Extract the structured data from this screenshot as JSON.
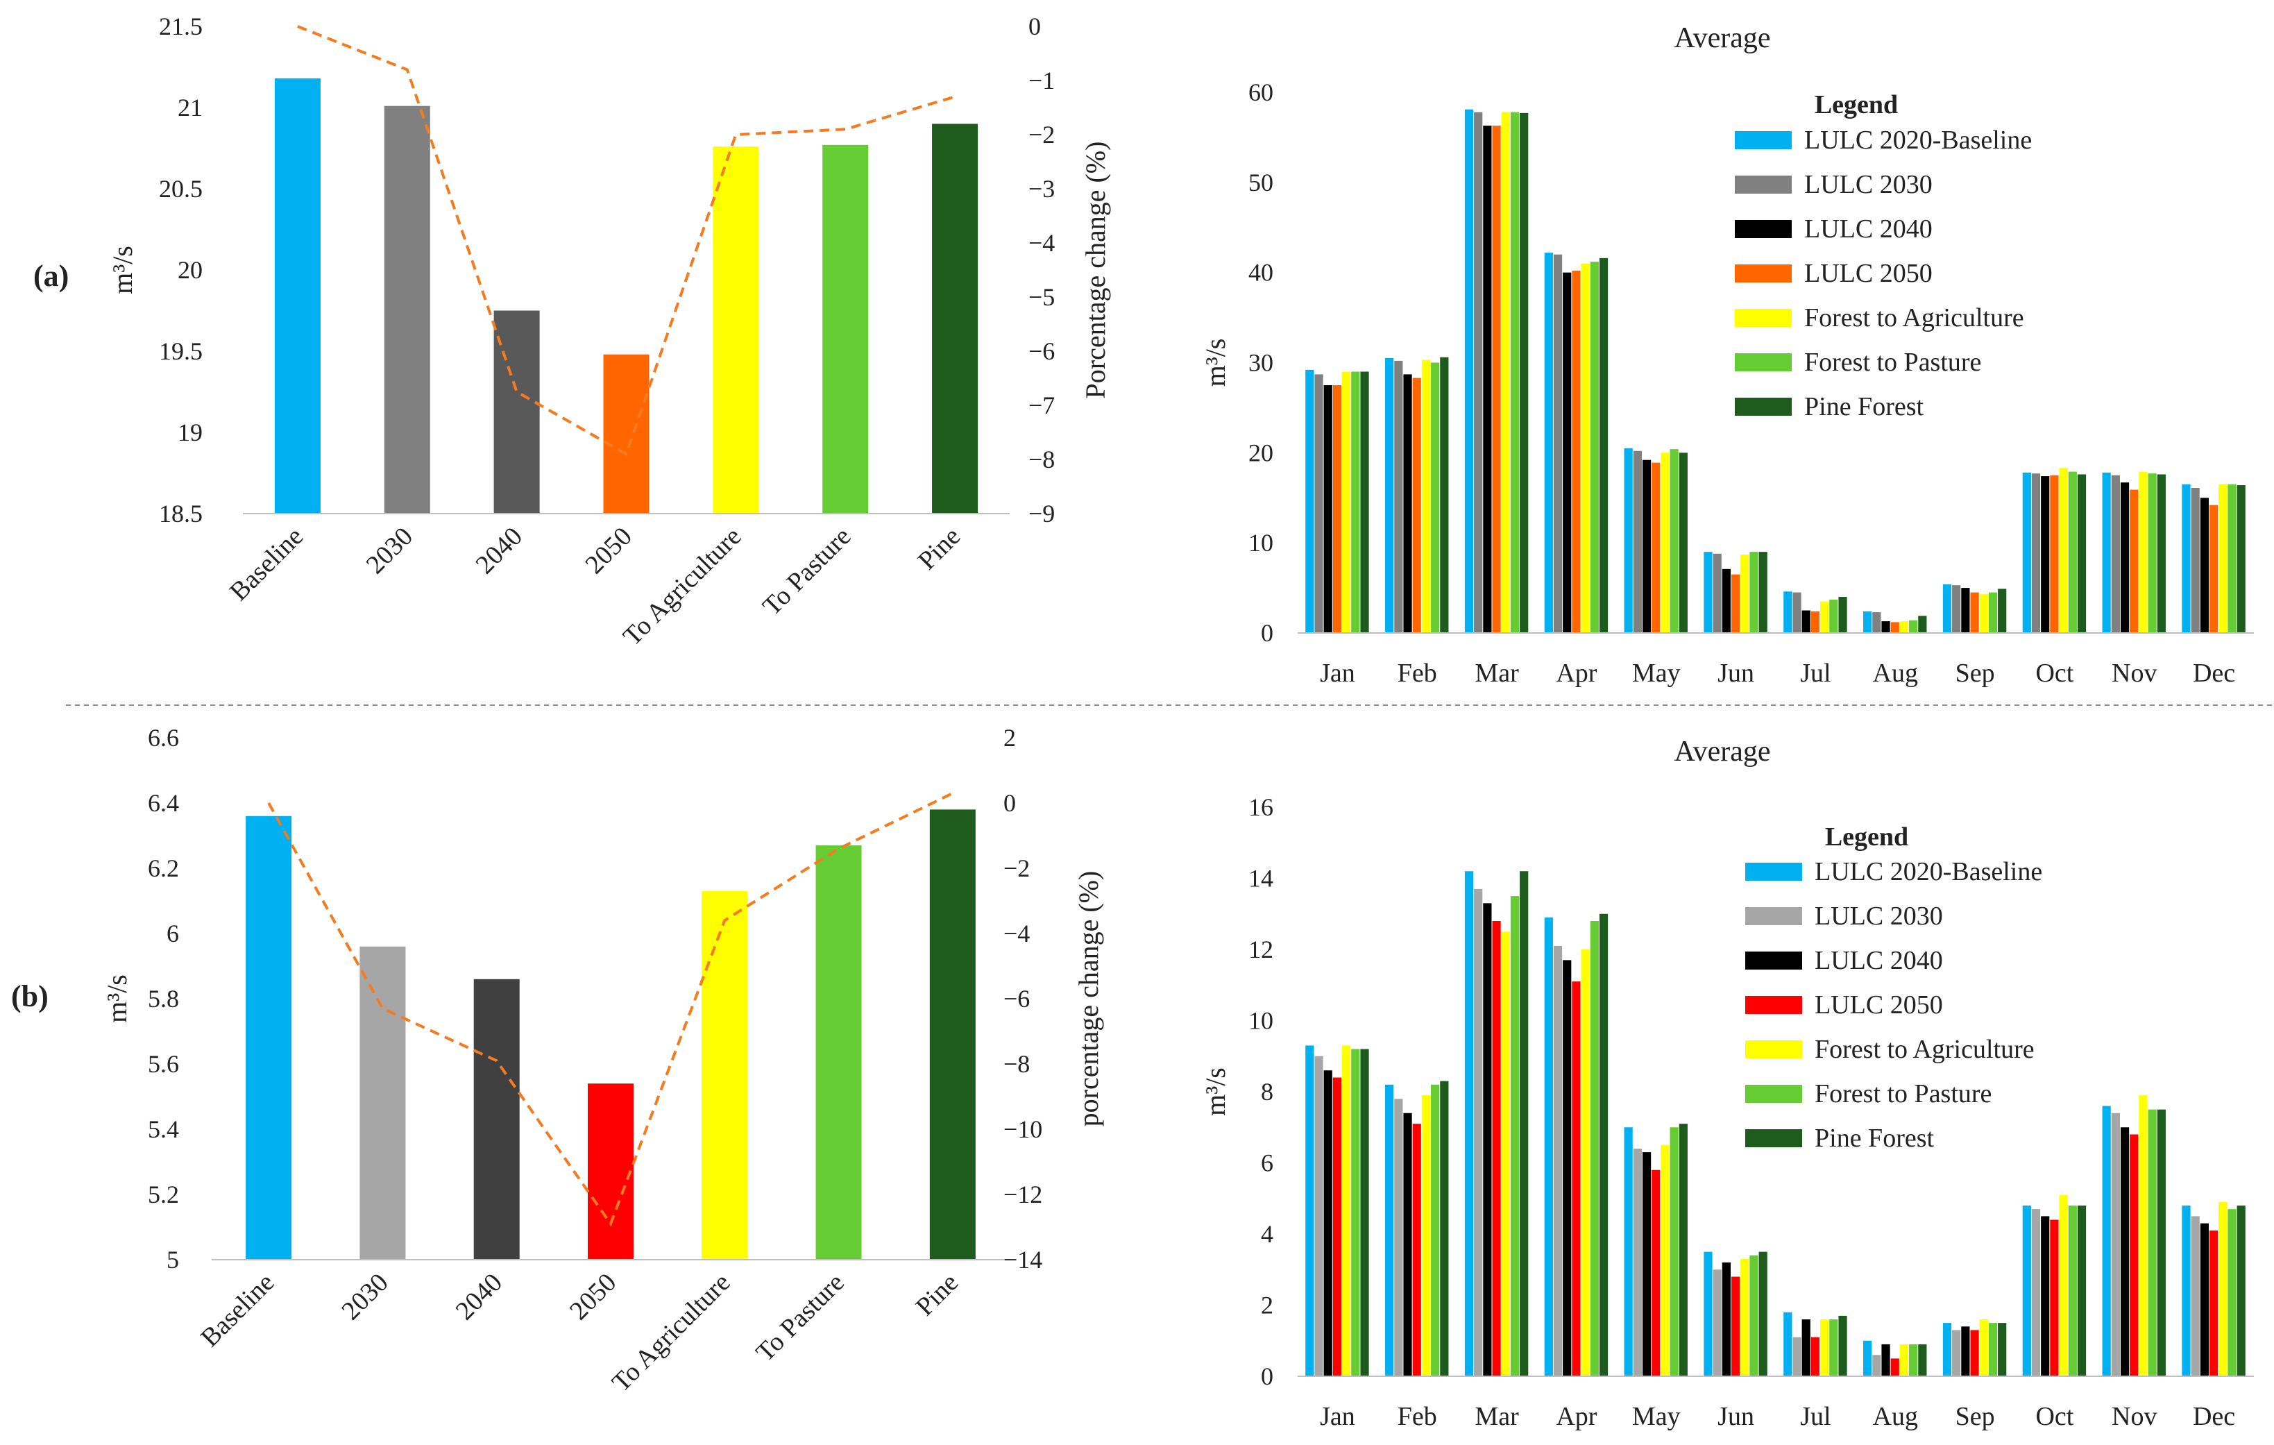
{
  "panels": [
    {
      "label": "(a)"
    },
    {
      "label": "(b)"
    }
  ],
  "chart_data": [
    {
      "id": "a-left",
      "type": "bar",
      "panel": "(a)",
      "categories": [
        "Baseline",
        "2030",
        "2040",
        "2050",
        "To Agriculture",
        "To Pasture",
        "Pine"
      ],
      "values": [
        21.18,
        21.01,
        19.75,
        19.48,
        20.76,
        20.77,
        20.9
      ],
      "colors": [
        "#00B0F0",
        "#808080",
        "#595959",
        "#FF6600",
        "#FFFF00",
        "#66CC33",
        "#1E5C1E"
      ],
      "ylabel": "m³/s",
      "ylim": [
        18.5,
        21.5
      ],
      "yticks": [
        18.5,
        19,
        19.5,
        20,
        20.5,
        21,
        21.5
      ],
      "ytick_labels": [
        "18.5",
        "19",
        "19.5",
        "20",
        "20.5",
        "21",
        "21.5"
      ],
      "line": {
        "name": "Porcentage change (%)",
        "values": [
          0,
          -0.8,
          -6.75,
          -7.9,
          -2,
          -1.9,
          -1.3
        ],
        "color": "#F47B20"
      },
      "y2label": "Porcentage change (%)",
      "y2lim": [
        -9,
        0
      ],
      "y2ticks": [
        0,
        -1,
        -2,
        -3,
        -4,
        -5,
        -6,
        -7,
        -8,
        -9
      ],
      "y2tick_labels": [
        "0",
        "−1",
        "−2",
        "−3",
        "−4",
        "−5",
        "−6",
        "−7",
        "−8",
        "−9"
      ],
      "grid": false
    },
    {
      "id": "a-right",
      "type": "bar",
      "panel": "(a)",
      "title": "Average",
      "categories": [
        "Jan",
        "Feb",
        "Mar",
        "Apr",
        "May",
        "Jun",
        "Jul",
        "Aug",
        "Sep",
        "Oct",
        "Nov",
        "Dec"
      ],
      "ylabel": "m³/s",
      "ylim": [
        0,
        60
      ],
      "yticks": [
        0,
        10,
        20,
        30,
        40,
        50,
        60
      ],
      "ytick_labels": [
        "0",
        "10",
        "20",
        "30",
        "40",
        "50",
        "60"
      ],
      "legend_title": "Legend",
      "legend_position": "top-right",
      "series": [
        {
          "name": "LULC 2020-Baseline",
          "color": "#00B0F0",
          "values": [
            29.2,
            30.5,
            58.1,
            42.2,
            20.5,
            9.0,
            4.6,
            2.4,
            5.4,
            17.8,
            17.8,
            16.5
          ]
        },
        {
          "name": "LULC 2030",
          "color": "#808080",
          "values": [
            28.7,
            30.2,
            57.8,
            42.0,
            20.2,
            8.8,
            4.5,
            2.3,
            5.3,
            17.7,
            17.5,
            16.1
          ]
        },
        {
          "name": "LULC 2040",
          "color": "#000000",
          "values": [
            27.5,
            28.7,
            56.3,
            40.0,
            19.2,
            7.1,
            2.5,
            1.3,
            5.0,
            17.4,
            16.7,
            15.0
          ]
        },
        {
          "name": "LULC 2050",
          "color": "#FF6600",
          "values": [
            27.5,
            28.3,
            56.3,
            40.2,
            18.9,
            6.5,
            2.4,
            1.2,
            4.5,
            17.5,
            15.9,
            14.2
          ]
        },
        {
          "name": "Forest to Agriculture",
          "color": "#FFFF00",
          "values": [
            29.0,
            30.3,
            57.8,
            41.0,
            20.0,
            8.7,
            3.5,
            1.3,
            4.3,
            18.3,
            17.9,
            16.5
          ]
        },
        {
          "name": "Forest to Pasture",
          "color": "#66CC33",
          "values": [
            29.0,
            30.0,
            57.8,
            41.2,
            20.4,
            9.0,
            3.7,
            1.4,
            4.5,
            17.9,
            17.7,
            16.5
          ]
        },
        {
          "name": "Pine Forest",
          "color": "#1E5C1E",
          "values": [
            29.0,
            30.6,
            57.7,
            41.6,
            20.0,
            9.0,
            4.0,
            1.9,
            4.9,
            17.6,
            17.6,
            16.4
          ]
        }
      ],
      "grid": false
    },
    {
      "id": "b-left",
      "type": "bar",
      "panel": "(b)",
      "categories": [
        "Baseline",
        "2030",
        "2040",
        "2050",
        "To Agriculture",
        "To Pasture",
        "Pine"
      ],
      "values": [
        6.36,
        5.96,
        5.86,
        5.54,
        6.13,
        6.27,
        6.38
      ],
      "colors": [
        "#00B0F0",
        "#A6A6A6",
        "#404040",
        "#FF0000",
        "#FFFF00",
        "#66CC33",
        "#1E5C1E"
      ],
      "ylabel": "m³/s",
      "ylim": [
        5,
        6.6
      ],
      "yticks": [
        5,
        5.2,
        5.4,
        5.6,
        5.8,
        6,
        6.2,
        6.4,
        6.6
      ],
      "ytick_labels": [
        "5",
        "5.2",
        "5.4",
        "5.6",
        "5.8",
        "6",
        "6.2",
        "6.4",
        "6.6"
      ],
      "line": {
        "name": "porcentage change (%)",
        "values": [
          0,
          -6.3,
          -7.9,
          -12.9,
          -3.6,
          -1.4,
          0.3
        ],
        "color": "#F47B20"
      },
      "y2label": "porcentage change (%)",
      "y2lim": [
        -14,
        2
      ],
      "y2ticks": [
        2,
        0,
        -2,
        -4,
        -6,
        -8,
        -10,
        -12,
        -14
      ],
      "y2tick_labels": [
        "2",
        "0",
        "−2",
        "−4",
        "−6",
        "−8",
        "−10",
        "−12",
        "−14"
      ],
      "grid": false
    },
    {
      "id": "b-right",
      "type": "bar",
      "panel": "(b)",
      "title": "Average",
      "categories": [
        "Jan",
        "Feb",
        "Mar",
        "Apr",
        "May",
        "Jun",
        "Jul",
        "Aug",
        "Sep",
        "Oct",
        "Nov",
        "Dec"
      ],
      "ylabel": "m³/s",
      "ylim": [
        0,
        16
      ],
      "yticks": [
        0,
        2,
        4,
        6,
        8,
        10,
        12,
        14,
        16
      ],
      "ytick_labels": [
        "0",
        "2",
        "4",
        "6",
        "8",
        "10",
        "12",
        "14",
        "16"
      ],
      "legend_title": "Legend",
      "legend_position": "top-right",
      "series": [
        {
          "name": "LULC 2020-Baseline",
          "color": "#00B0F0",
          "values": [
            9.3,
            8.2,
            14.2,
            12.9,
            7.0,
            3.5,
            1.8,
            1.0,
            1.5,
            4.8,
            7.6,
            4.8
          ]
        },
        {
          "name": "LULC 2030",
          "color": "#A6A6A6",
          "values": [
            9.0,
            7.8,
            13.7,
            12.1,
            6.4,
            3.0,
            1.1,
            0.6,
            1.3,
            4.7,
            7.4,
            4.5
          ]
        },
        {
          "name": "LULC 2040",
          "color": "#000000",
          "values": [
            8.6,
            7.4,
            13.3,
            11.7,
            6.3,
            3.2,
            1.6,
            0.9,
            1.4,
            4.5,
            7.0,
            4.3
          ]
        },
        {
          "name": "LULC 2050",
          "color": "#FF0000",
          "values": [
            8.4,
            7.1,
            12.8,
            11.1,
            5.8,
            2.8,
            1.1,
            0.5,
            1.3,
            4.4,
            6.8,
            4.1
          ]
        },
        {
          "name": "Forest to Agriculture",
          "color": "#FFFF00",
          "values": [
            9.3,
            7.9,
            12.5,
            12.0,
            6.5,
            3.3,
            1.6,
            0.9,
            1.6,
            5.1,
            7.9,
            4.9
          ]
        },
        {
          "name": "Forest to Pasture",
          "color": "#66CC33",
          "values": [
            9.2,
            8.2,
            13.5,
            12.8,
            7.0,
            3.4,
            1.6,
            0.9,
            1.5,
            4.8,
            7.5,
            4.7
          ]
        },
        {
          "name": "Pine Forest",
          "color": "#1E5C1E",
          "values": [
            9.2,
            8.3,
            14.2,
            13.0,
            7.1,
            3.5,
            1.7,
            0.9,
            1.5,
            4.8,
            7.5,
            4.8
          ]
        }
      ],
      "grid": false
    }
  ]
}
